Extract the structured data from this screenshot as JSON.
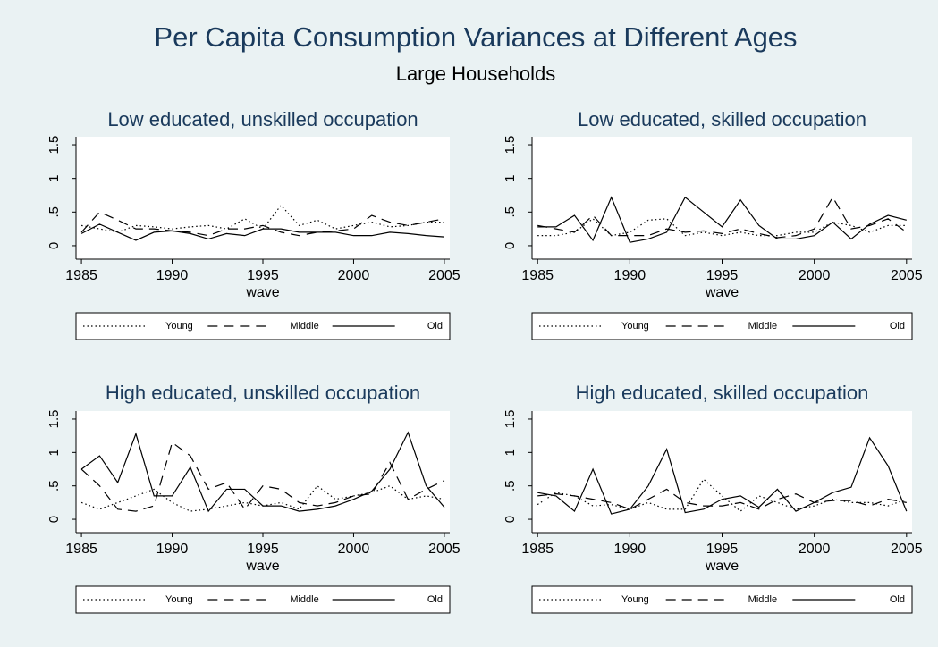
{
  "title": "Per Capita Consumption Variances at Different Ages",
  "subtitle": "Large Households",
  "chart_data": [
    {
      "type": "line",
      "title": "Low educated, unskilled occupation",
      "x_label": "wave",
      "x": [
        1985,
        1986,
        1987,
        1988,
        1989,
        1990,
        1991,
        1992,
        1993,
        1994,
        1995,
        1996,
        1997,
        1998,
        1999,
        2000,
        2001,
        2002,
        2003,
        2004,
        2005
      ],
      "xlim": [
        1984.7,
        2005.3
      ],
      "xticks": [
        1985,
        1990,
        1995,
        2000,
        2005
      ],
      "ylim": [
        -0.2,
        1.62
      ],
      "yticks": [
        0,
        {
          "value": 0.5,
          "label": ".5"
        },
        1,
        1.5
      ],
      "grid": false,
      "legend": "bottom",
      "series": [
        {
          "name": "Young",
          "color": "#000000",
          "dash": "dotted",
          "values": [
            0.3,
            0.25,
            0.2,
            0.3,
            0.28,
            0.25,
            0.28,
            0.3,
            0.25,
            0.4,
            0.25,
            0.6,
            0.3,
            0.38,
            0.25,
            0.3,
            0.35,
            0.28,
            0.3,
            0.35,
            0.35
          ]
        },
        {
          "name": "Middle",
          "color": "#000000",
          "dash": "dashed",
          "values": [
            0.2,
            0.5,
            0.38,
            0.25,
            0.25,
            0.22,
            0.2,
            0.15,
            0.25,
            0.25,
            0.3,
            0.2,
            0.15,
            0.2,
            0.22,
            0.25,
            0.45,
            0.35,
            0.3,
            0.35,
            0.4
          ]
        },
        {
          "name": "Old",
          "color": "#000000",
          "dash": "solid",
          "values": [
            0.18,
            0.32,
            0.2,
            0.08,
            0.2,
            0.22,
            0.18,
            0.1,
            0.18,
            0.15,
            0.25,
            0.25,
            0.2,
            0.2,
            0.2,
            0.15,
            0.15,
            0.2,
            0.18,
            0.15,
            0.13
          ]
        }
      ]
    },
    {
      "type": "line",
      "title": "Low educated, skilled occupation",
      "x_label": "wave",
      "x": [
        1985,
        1986,
        1987,
        1988,
        1989,
        1990,
        1991,
        1992,
        1993,
        1994,
        1995,
        1996,
        1997,
        1998,
        1999,
        2000,
        2001,
        2002,
        2003,
        2004,
        2005
      ],
      "xlim": [
        1984.7,
        2005.3
      ],
      "xticks": [
        1985,
        1990,
        1995,
        2000,
        2005
      ],
      "ylim": [
        -0.2,
        1.62
      ],
      "yticks": [
        0,
        {
          "value": 0.5,
          "label": ".5"
        },
        1,
        1.5
      ],
      "grid": false,
      "legend": "bottom",
      "series": [
        {
          "name": "Young",
          "color": "#000000",
          "dash": "dotted",
          "values": [
            0.15,
            0.15,
            0.2,
            0.4,
            0.15,
            0.2,
            0.38,
            0.4,
            0.15,
            0.2,
            0.15,
            0.2,
            0.15,
            0.15,
            0.2,
            0.2,
            0.35,
            0.3,
            0.2,
            0.3,
            0.3
          ]
        },
        {
          "name": "Middle",
          "color": "#000000",
          "dash": "dashed",
          "values": [
            0.3,
            0.25,
            0.2,
            0.45,
            0.15,
            0.15,
            0.15,
            0.25,
            0.2,
            0.22,
            0.18,
            0.25,
            0.18,
            0.12,
            0.15,
            0.25,
            0.72,
            0.25,
            0.3,
            0.4,
            0.2
          ]
        },
        {
          "name": "Old",
          "color": "#000000",
          "dash": "solid",
          "values": [
            0.28,
            0.28,
            0.45,
            0.08,
            0.72,
            0.05,
            0.1,
            0.2,
            0.72,
            0.5,
            0.28,
            0.68,
            0.3,
            0.1,
            0.1,
            0.15,
            0.35,
            0.1,
            0.32,
            0.45,
            0.38
          ]
        }
      ]
    },
    {
      "type": "line",
      "title": "High educated, unskilled occupation",
      "x_label": "wave",
      "x": [
        1985,
        1986,
        1987,
        1988,
        1989,
        1990,
        1991,
        1992,
        1993,
        1994,
        1995,
        1996,
        1997,
        1998,
        1999,
        2000,
        2001,
        2002,
        2003,
        2004,
        2005
      ],
      "xlim": [
        1984.7,
        2005.3
      ],
      "xticks": [
        1985,
        1990,
        1995,
        2000,
        2005
      ],
      "ylim": [
        -0.2,
        1.62
      ],
      "yticks": [
        0,
        {
          "value": 0.5,
          "label": ".5"
        },
        1,
        1.5
      ],
      "grid": false,
      "legend": "bottom",
      "series": [
        {
          "name": "Young",
          "color": "#000000",
          "dash": "dotted",
          "values": [
            0.25,
            0.15,
            0.25,
            0.35,
            0.45,
            0.25,
            0.12,
            0.15,
            0.2,
            0.25,
            0.2,
            0.25,
            0.15,
            0.5,
            0.3,
            0.35,
            0.4,
            0.5,
            0.3,
            0.35,
            0.3
          ]
        },
        {
          "name": "Middle",
          "color": "#000000",
          "dash": "dashed",
          "values": [
            0.75,
            0.5,
            0.15,
            0.12,
            0.2,
            1.15,
            0.95,
            0.45,
            0.55,
            0.15,
            0.5,
            0.45,
            0.25,
            0.2,
            0.25,
            0.35,
            0.38,
            0.85,
            0.3,
            0.45,
            0.58
          ]
        },
        {
          "name": "Old",
          "color": "#000000",
          "dash": "solid",
          "values": [
            0.75,
            0.95,
            0.55,
            1.28,
            0.35,
            0.35,
            0.78,
            0.12,
            0.45,
            0.45,
            0.2,
            0.2,
            0.12,
            0.15,
            0.2,
            0.3,
            0.42,
            0.75,
            1.3,
            0.5,
            0.18
          ]
        }
      ]
    },
    {
      "type": "line",
      "title": "High educated, skilled occupation",
      "x_label": "wave",
      "x": [
        1985,
        1986,
        1987,
        1988,
        1989,
        1990,
        1991,
        1992,
        1993,
        1994,
        1995,
        1996,
        1997,
        1998,
        1999,
        2000,
        2001,
        2002,
        2003,
        2004,
        2005
      ],
      "xlim": [
        1984.7,
        2005.3
      ],
      "xticks": [
        1985,
        1990,
        1995,
        2000,
        2005
      ],
      "ylim": [
        -0.2,
        1.62
      ],
      "yticks": [
        0,
        {
          "value": 0.5,
          "label": ".5"
        },
        1,
        1.5
      ],
      "grid": false,
      "legend": "bottom",
      "series": [
        {
          "name": "Young",
          "color": "#000000",
          "dash": "dotted",
          "values": [
            0.22,
            0.4,
            0.35,
            0.2,
            0.22,
            0.15,
            0.25,
            0.15,
            0.15,
            0.6,
            0.35,
            0.12,
            0.35,
            0.25,
            0.15,
            0.2,
            0.3,
            0.25,
            0.25,
            0.2,
            0.3
          ]
        },
        {
          "name": "Middle",
          "color": "#000000",
          "dash": "dashed",
          "values": [
            0.35,
            0.38,
            0.35,
            0.3,
            0.25,
            0.15,
            0.3,
            0.45,
            0.25,
            0.2,
            0.2,
            0.25,
            0.15,
            0.3,
            0.38,
            0.25,
            0.28,
            0.28,
            0.2,
            0.3,
            0.25
          ]
        },
        {
          "name": "Old",
          "color": "#000000",
          "dash": "solid",
          "values": [
            0.4,
            0.35,
            0.12,
            0.75,
            0.08,
            0.15,
            0.5,
            1.05,
            0.1,
            0.15,
            0.3,
            0.35,
            0.18,
            0.45,
            0.12,
            0.25,
            0.4,
            0.48,
            1.22,
            0.8,
            0.12
          ]
        }
      ]
    }
  ]
}
